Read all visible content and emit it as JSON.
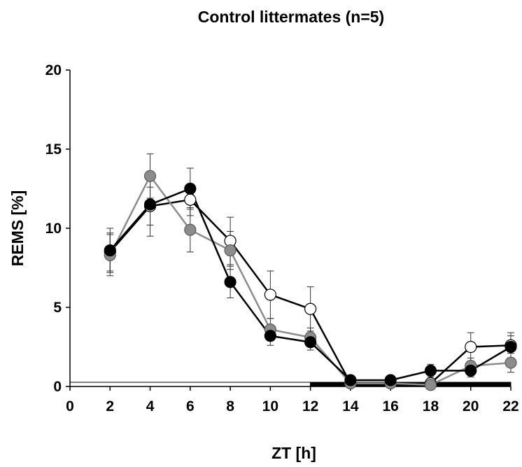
{
  "chart_data": {
    "type": "line",
    "title": "Control littermates (n=5)",
    "xlabel": "ZT [h]",
    "ylabel": "REMS [%]",
    "xlim": [
      0,
      22
    ],
    "ylim": [
      0,
      20
    ],
    "xticks": [
      0,
      2,
      4,
      6,
      8,
      10,
      12,
      14,
      16,
      18,
      20,
      22
    ],
    "yticks": [
      0,
      5,
      10,
      15,
      20
    ],
    "grid": false,
    "light_dark_bar": {
      "light": [
        0,
        12
      ],
      "dark": [
        12,
        22
      ]
    },
    "x": [
      2,
      4,
      6,
      8,
      10,
      12,
      14,
      16,
      18,
      20,
      22
    ],
    "series": [
      {
        "marker": "open-circle",
        "color": "#000000",
        "values": [
          8.5,
          11.4,
          11.8,
          9.2,
          5.8,
          4.9,
          0.2,
          0.2,
          0.2,
          2.5,
          2.6
        ],
        "errors": [
          1.2,
          1.2,
          1.0,
          1.5,
          1.5,
          1.4,
          0.1,
          0.1,
          0.1,
          0.9,
          0.8
        ]
      },
      {
        "marker": "gray-circle",
        "color": "#888888",
        "values": [
          8.3,
          13.3,
          9.9,
          8.6,
          3.6,
          3.1,
          0.2,
          0.2,
          0.1,
          1.3,
          1.5
        ],
        "errors": [
          1.3,
          1.4,
          1.4,
          1.2,
          0.7,
          0.6,
          0.1,
          0.1,
          0.1,
          0.5,
          0.6
        ]
      },
      {
        "marker": "filled-circle",
        "color": "#000000",
        "values": [
          8.6,
          11.5,
          12.5,
          6.6,
          3.2,
          2.8,
          0.4,
          0.4,
          1.0,
          1.0,
          2.5
        ],
        "errors": [
          1.4,
          2.0,
          1.3,
          1.0,
          0.6,
          0.5,
          0.2,
          0.2,
          0.4,
          0.4,
          0.7
        ]
      }
    ]
  }
}
